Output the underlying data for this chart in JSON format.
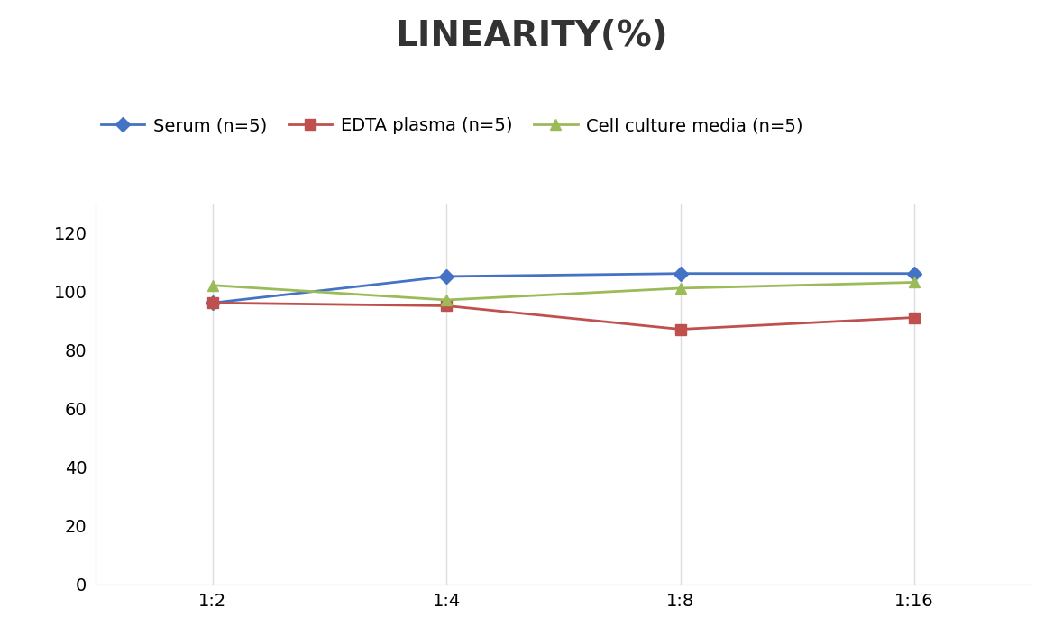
{
  "title": "LINEARITY(%)",
  "title_fontsize": 28,
  "title_fontweight": "bold",
  "x_labels": [
    "1:2",
    "1:4",
    "1:8",
    "1:16"
  ],
  "x_positions": [
    0,
    1,
    2,
    3
  ],
  "series": [
    {
      "label": "Serum (n=5)",
      "values": [
        96,
        105,
        106,
        106
      ],
      "color": "#4472C4",
      "marker": "D",
      "markersize": 8,
      "linewidth": 2
    },
    {
      "label": "EDTA plasma (n=5)",
      "values": [
        96,
        95,
        87,
        91
      ],
      "color": "#C0504D",
      "marker": "s",
      "markersize": 8,
      "linewidth": 2
    },
    {
      "label": "Cell culture media (n=5)",
      "values": [
        102,
        97,
        101,
        103
      ],
      "color": "#9BBB59",
      "marker": "^",
      "markersize": 9,
      "linewidth": 2
    }
  ],
  "ylim": [
    0,
    130
  ],
  "yticks": [
    0,
    20,
    40,
    60,
    80,
    100,
    120
  ],
  "grid_color": "#DDDDDD",
  "background_color": "#FFFFFF",
  "legend_fontsize": 14,
  "axis_fontsize": 14
}
